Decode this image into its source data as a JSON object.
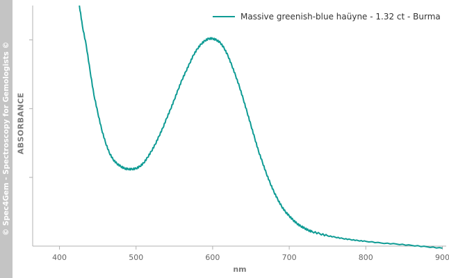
{
  "watermark": "© Spec4Gem - Spectroscopy for Gemologists ©",
  "colors": {
    "series": "#0e9b94",
    "axis": "#b0b0b0",
    "watermark_bg": "#c4c4c4"
  },
  "chart_data": {
    "type": "line",
    "title": "",
    "xlabel": "nm",
    "ylabel": "ABSORBANCE",
    "xlim": [
      365,
      905
    ],
    "ylim": [
      0,
      3.5
    ],
    "xticks": [
      400,
      500,
      600,
      700,
      800,
      900
    ],
    "yticks": [
      1,
      2,
      3
    ],
    "grid": false,
    "legend_position": "top-right",
    "series": [
      {
        "name": "Massive greenish-blue haüyne - 1.32 ct - Burma",
        "x": [
          426,
          430,
          435,
          440,
          445,
          450,
          455,
          460,
          465,
          470,
          475,
          480,
          485,
          490,
          495,
          500,
          505,
          510,
          515,
          520,
          525,
          530,
          535,
          540,
          545,
          550,
          555,
          560,
          565,
          570,
          575,
          580,
          585,
          590,
          595,
          600,
          605,
          610,
          615,
          620,
          625,
          630,
          635,
          640,
          645,
          650,
          655,
          660,
          665,
          670,
          675,
          680,
          685,
          690,
          695,
          700,
          705,
          710,
          715,
          720,
          725,
          730,
          740,
          750,
          760,
          770,
          780,
          790,
          800,
          820,
          840,
          860,
          880,
          900
        ],
        "y": [
          3.5,
          3.2,
          2.92,
          2.55,
          2.2,
          1.94,
          1.7,
          1.51,
          1.36,
          1.26,
          1.2,
          1.16,
          1.13,
          1.12,
          1.12,
          1.13,
          1.16,
          1.21,
          1.29,
          1.38,
          1.48,
          1.6,
          1.72,
          1.86,
          1.99,
          2.13,
          2.28,
          2.42,
          2.54,
          2.66,
          2.78,
          2.87,
          2.94,
          2.99,
          3.02,
          3.02,
          3.0,
          2.96,
          2.88,
          2.77,
          2.63,
          2.48,
          2.32,
          2.14,
          1.95,
          1.76,
          1.57,
          1.38,
          1.22,
          1.06,
          0.92,
          0.79,
          0.68,
          0.58,
          0.5,
          0.44,
          0.38,
          0.33,
          0.29,
          0.26,
          0.23,
          0.21,
          0.18,
          0.15,
          0.13,
          0.11,
          0.095,
          0.08,
          0.07,
          0.045,
          0.03,
          0.01,
          -0.01,
          -0.03
        ]
      }
    ]
  }
}
